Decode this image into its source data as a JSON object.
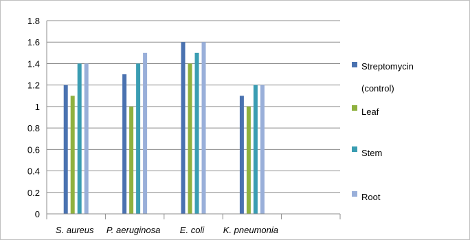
{
  "chart_data": {
    "type": "bar",
    "title": "",
    "xlabel": "",
    "ylabel": "",
    "categories": [
      "S. aureus",
      "P. aeruginosa",
      "E. coli",
      "K. pneumonia",
      ""
    ],
    "series": [
      {
        "name": "Streptomycin (control)",
        "color": "#4a72b0",
        "values": [
          1.2,
          1.3,
          1.6,
          1.1,
          null
        ]
      },
      {
        "name": "Leaf",
        "color": "#8fb13f",
        "values": [
          1.1,
          1.0,
          1.4,
          1.0,
          null
        ]
      },
      {
        "name": "Stem",
        "color": "#3a9db2",
        "values": [
          1.4,
          1.4,
          1.5,
          1.2,
          null
        ]
      },
      {
        "name": "Root",
        "color": "#99afd9",
        "values": [
          1.4,
          1.5,
          1.6,
          1.2,
          null
        ]
      }
    ],
    "ylim": [
      0,
      1.8
    ],
    "yticks": [
      "0",
      "0.2",
      "0.4",
      "0.6",
      "0.8",
      "1",
      "1.2",
      "1.4",
      "1.6",
      "1.8"
    ],
    "grid": "horizontal (every 0.2)",
    "legend_position": "right"
  }
}
